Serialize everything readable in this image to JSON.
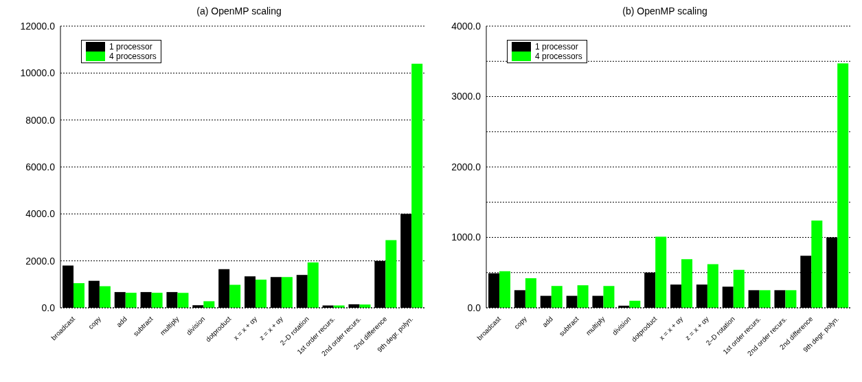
{
  "chart_data": [
    {
      "type": "bar",
      "title": "(a) OpenMP scaling",
      "categories": [
        "broadcast",
        "copy",
        "add",
        "subtract",
        "multiply",
        "division",
        "dotproduct",
        "x = x + αy",
        "z = x + αy",
        "2–D rotation",
        "1st order recurs.",
        "2nd order recurs.",
        "2nd difference",
        "9th degr. polyn."
      ],
      "series": [
        {
          "name": "1 processor",
          "color": "#000000",
          "values": [
            1800,
            1150,
            670,
            670,
            670,
            110,
            1650,
            1340,
            1310,
            1400,
            100,
            150,
            2000,
            4000
          ]
        },
        {
          "name": "4 processors",
          "color": "#00ff00",
          "values": [
            1050,
            920,
            640,
            640,
            640,
            280,
            980,
            1200,
            1310,
            1930,
            100,
            140,
            2880,
            10400
          ]
        }
      ],
      "ylim": [
        0,
        12000
      ],
      "yticks": [
        {
          "value": 0,
          "label": "0.0"
        },
        {
          "value": 2000,
          "label": "2000.0"
        },
        {
          "value": 4000,
          "label": "4000.0"
        },
        {
          "value": 6000,
          "label": "6000.0"
        },
        {
          "value": 8000,
          "label": "8000.0"
        },
        {
          "value": 10000,
          "label": "10000.0"
        },
        {
          "value": 12000,
          "label": "12000.0"
        }
      ],
      "grid": "y",
      "legend": "top left"
    },
    {
      "type": "bar",
      "title": "(b) OpenMP scaling",
      "categories": [
        "broadcast",
        "copy",
        "add",
        "subtract",
        "multiply",
        "division",
        "dotproduct",
        "x = x + αy",
        "z = x + αy",
        "2–D rotation",
        "1st order recurs.",
        "2nd order recurs.",
        "2nd difference",
        "9th degr. polyn."
      ],
      "series": [
        {
          "name": "1 processor",
          "color": "#000000",
          "values": [
            490,
            250,
            170,
            170,
            170,
            30,
            500,
            330,
            330,
            300,
            250,
            250,
            740,
            1000
          ]
        },
        {
          "name": "4 processors",
          "color": "#00ff00",
          "values": [
            520,
            420,
            310,
            320,
            310,
            100,
            1010,
            690,
            620,
            540,
            250,
            250,
            1240,
            3470
          ]
        }
      ],
      "ylim": [
        0,
        4000
      ],
      "yticks": [
        {
          "value": 0,
          "label": "0.0"
        },
        {
          "value": 500,
          "label": null
        },
        {
          "value": 1000,
          "label": "1000.0"
        },
        {
          "value": 1500,
          "label": null
        },
        {
          "value": 2000,
          "label": "2000.0"
        },
        {
          "value": 2500,
          "label": null
        },
        {
          "value": 3000,
          "label": "3000.0"
        },
        {
          "value": 3500,
          "label": null
        },
        {
          "value": 4000,
          "label": "4000.0"
        }
      ],
      "grid": "y",
      "legend": "top left"
    }
  ]
}
